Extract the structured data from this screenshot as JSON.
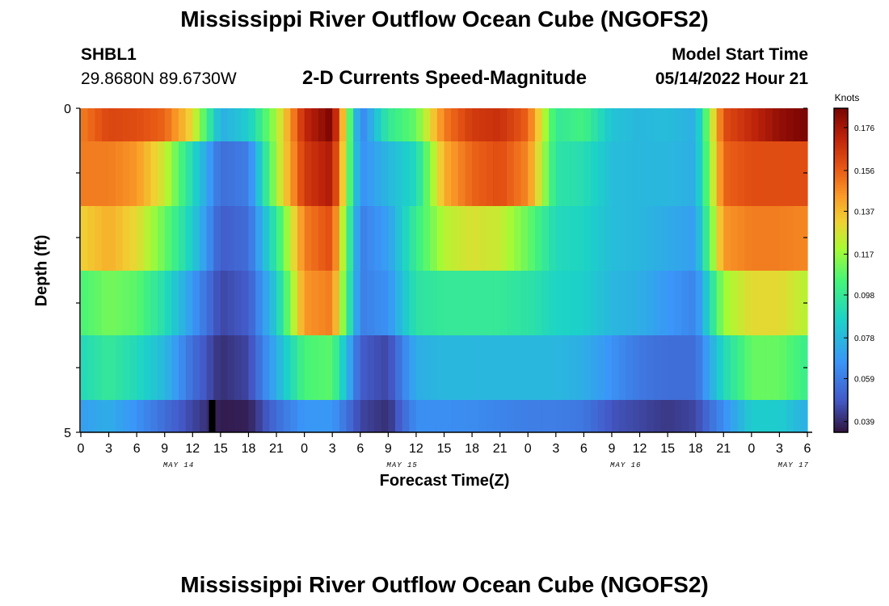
{
  "header": {
    "title": "Mississippi River Outflow Ocean Cube (NGOFS2)",
    "station_id": "SHBL1",
    "station_coords": "29.8680N  89.6730W",
    "subtitle": "2-D Currents Speed-Magnitude",
    "start_time_label": "Model Start Time",
    "start_time_value": "05/14/2022 Hour 21"
  },
  "footer": {
    "title": "Mississippi River Outflow Ocean Cube (NGOFS2)"
  },
  "chart_data": {
    "type": "heatmap",
    "title": "2-D Currents Speed-Magnitude",
    "xlabel": "Forecast Time(Z)",
    "ylabel": "Depth (ft)",
    "ylim": [
      0,
      5
    ],
    "y_ticks": [
      "0",
      "5"
    ],
    "x_tick_labels": [
      "0",
      "3",
      "6",
      "9",
      "12",
      "15",
      "18",
      "21",
      "0",
      "3",
      "6",
      "9",
      "12",
      "15",
      "18",
      "21",
      "0",
      "3",
      "6",
      "9",
      "12",
      "15",
      "18",
      "21",
      "0",
      "3",
      "6"
    ],
    "date_labels": [
      {
        "label": "MAY 14",
        "tick_index": 3.5
      },
      {
        "label": "MAY 15",
        "tick_index": 11.5
      },
      {
        "label": "MAY 16",
        "tick_index": 19.5
      },
      {
        "label": "MAY 17",
        "tick_index": 25.5
      }
    ],
    "colorbar": {
      "unit": "Knots",
      "min": 0.034,
      "max": 0.185,
      "tick_values": [
        0.176,
        0.156,
        0.137,
        0.117,
        0.098,
        0.078,
        0.059,
        0.039
      ],
      "tick_labels": [
        "0.176",
        "0.156",
        "0.137",
        "0.117",
        "0.098",
        "0.078",
        "0.059",
        "0.039"
      ]
    },
    "layers": [
      {
        "band": 1,
        "values": [
          0.15,
          0.162,
          0.16,
          0.155,
          0.13,
          0.075,
          0.085,
          0.12,
          0.17,
          0.185,
          0.06,
          0.098,
          0.11,
          0.15,
          0.165,
          0.168,
          0.155,
          0.098,
          0.103,
          0.082,
          0.078,
          0.08,
          0.075,
          0.16,
          0.17,
          0.18,
          0.185
        ]
      },
      {
        "band": 2,
        "values": [
          0.15,
          0.15,
          0.145,
          0.125,
          0.09,
          0.055,
          0.06,
          0.12,
          0.165,
          0.175,
          0.065,
          0.078,
          0.09,
          0.14,
          0.155,
          0.16,
          0.148,
          0.095,
          0.092,
          0.08,
          0.078,
          0.078,
          0.075,
          0.155,
          0.16,
          0.16,
          0.16
        ]
      },
      {
        "band": 3,
        "values": [
          0.132,
          0.14,
          0.13,
          0.11,
          0.085,
          0.05,
          0.055,
          0.098,
          0.15,
          0.16,
          0.06,
          0.07,
          0.1,
          0.122,
          0.128,
          0.125,
          0.11,
          0.09,
          0.088,
          0.08,
          0.078,
          0.074,
          0.07,
          0.145,
          0.15,
          0.15,
          0.148
        ]
      },
      {
        "band": 4,
        "values": [
          0.105,
          0.112,
          0.108,
          0.092,
          0.068,
          0.045,
          0.05,
          0.085,
          0.145,
          0.15,
          0.06,
          0.066,
          0.095,
          0.098,
          0.098,
          0.098,
          0.095,
          0.088,
          0.086,
          0.078,
          0.075,
          0.068,
          0.062,
          0.118,
          0.13,
          0.13,
          0.122
        ]
      },
      {
        "band": 5,
        "values": [
          0.09,
          0.098,
          0.09,
          0.078,
          0.055,
          0.04,
          0.045,
          0.075,
          0.105,
          0.108,
          0.05,
          0.045,
          0.075,
          0.078,
          0.078,
          0.078,
          0.078,
          0.078,
          0.075,
          0.066,
          0.058,
          0.055,
          0.055,
          0.09,
          0.11,
          0.11,
          0.1
        ]
      },
      {
        "band": 6,
        "values": [
          0.07,
          0.075,
          0.066,
          0.055,
          0.045,
          0.036,
          0.037,
          0.055,
          0.068,
          0.068,
          0.045,
          0.04,
          0.065,
          0.065,
          0.064,
          0.062,
          0.06,
          0.06,
          0.058,
          0.048,
          0.045,
          0.042,
          0.045,
          0.065,
          0.085,
          0.085,
          0.075
        ]
      }
    ],
    "annotations": [
      {
        "type": "black-cell",
        "band": 6,
        "tick_index": 4.7
      }
    ]
  }
}
